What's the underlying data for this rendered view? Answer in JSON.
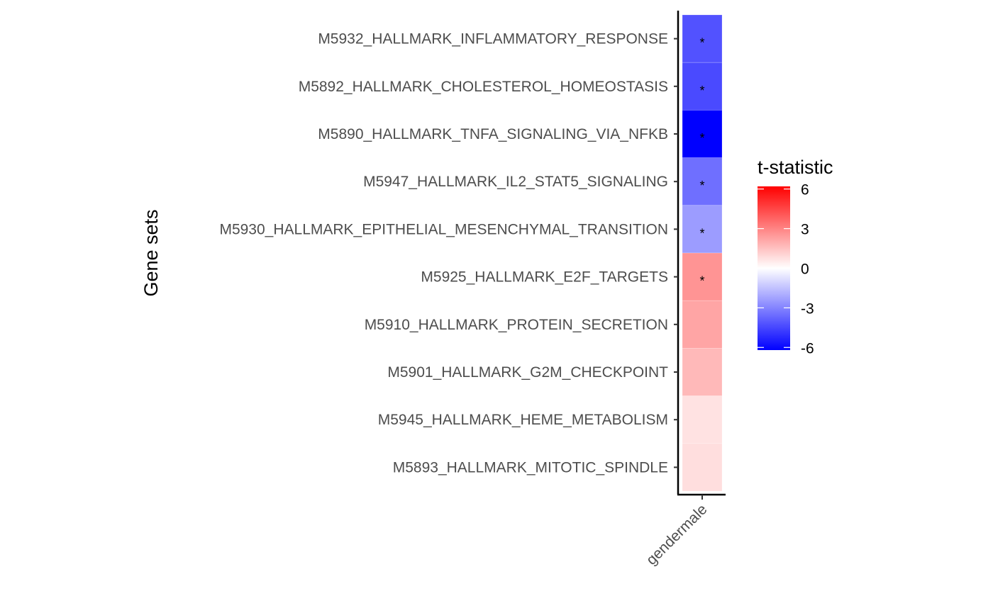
{
  "chart_data": {
    "type": "heatmap",
    "ylabel": "Gene sets",
    "xlabel": "",
    "columns": [
      "gendermale"
    ],
    "rows": [
      "M5932_HALLMARK_INFLAMMATORY_RESPONSE",
      "M5892_HALLMARK_CHOLESTEROL_HOMEOSTASIS",
      "M5890_HALLMARK_TNFA_SIGNALING_VIA_NFKB",
      "M5947_HALLMARK_IL2_STAT5_SIGNALING",
      "M5930_HALLMARK_EPITHELIAL_MESENCHYMAL_TRANSITION",
      "M5925_HALLMARK_E2F_TARGETS",
      "M5910_HALLMARK_PROTEIN_SECRETION",
      "M5901_HALLMARK_G2M_CHECKPOINT",
      "M5945_HALLMARK_HEME_METABOLISM",
      "M5893_HALLMARK_MITOTIC_SPINDLE"
    ],
    "values": [
      -4.2,
      -4.4,
      -6.2,
      -3.5,
      -2.4,
      2.6,
      2.2,
      1.7,
      0.7,
      0.8
    ],
    "significant": [
      true,
      true,
      true,
      true,
      true,
      true,
      false,
      false,
      false,
      false
    ],
    "sig_marker": "*",
    "legend": {
      "title": "t-statistic",
      "ticks": [
        6,
        3,
        0,
        -3,
        -6
      ],
      "tick_labels": [
        "6",
        "3",
        "0",
        "-3",
        "-6"
      ],
      "range": [
        -6.2,
        6.2
      ],
      "low_color": "#0000ff",
      "mid_color": "#ffffff",
      "high_color": "#ff0000",
      "position": "right"
    },
    "grid": false
  }
}
